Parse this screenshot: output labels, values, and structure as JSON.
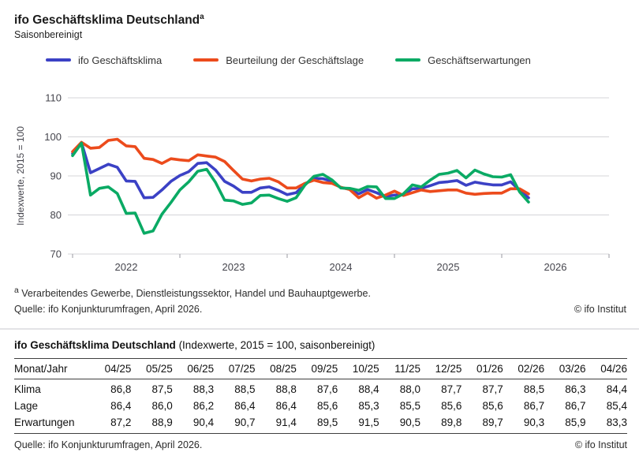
{
  "header": {
    "title": "ifo Geschäftsklima Deutschland",
    "title_superscript": "a",
    "subtitle": "Saisonbereinigt"
  },
  "legend": {
    "items": [
      {
        "label": "ifo Geschäftsklima",
        "color": "#3b41c5"
      },
      {
        "label": "Beurteilung der Geschäftslage",
        "color": "#ec4b1c"
      },
      {
        "label": "Geschäftserwartungen",
        "color": "#0aaa64"
      }
    ]
  },
  "chart_data": {
    "type": "line",
    "title": "ifo Geschäftsklima Deutschland, saisonbereinigt",
    "ylabel": "Indexwerte, 2015 = 100",
    "ylim": [
      70,
      110
    ],
    "y_ticks": [
      110,
      100,
      90,
      80,
      70
    ],
    "x_tick_years": [
      "2022",
      "2023",
      "2024",
      "2025",
      "2026"
    ],
    "start_month": "2022-01",
    "end_month": "2026-04",
    "grid": "horizontal",
    "legend_position": "top",
    "series": [
      {
        "name": "ifo Geschäftsklima",
        "color": "#3b41c5",
        "values": [
          95.7,
          98.5,
          90.8,
          91.9,
          93.0,
          92.2,
          88.7,
          88.6,
          84.4,
          84.5,
          86.4,
          88.6,
          90.1,
          91.1,
          93.2,
          93.4,
          91.5,
          88.6,
          87.4,
          85.8,
          85.8,
          86.9,
          87.2,
          86.3,
          85.2,
          85.7,
          87.9,
          89.4,
          89.3,
          88.6,
          87.0,
          86.6,
          85.4,
          86.5,
          85.7,
          84.7,
          85.1,
          85.2,
          86.7,
          86.8,
          87.5,
          88.3,
          88.5,
          88.8,
          87.6,
          88.4,
          88.0,
          87.7,
          87.7,
          88.5,
          86.3,
          84.4
        ]
      },
      {
        "name": "Beurteilung der Geschäftslage",
        "color": "#ec4b1c",
        "values": [
          96.2,
          98.6,
          97.1,
          97.3,
          99.1,
          99.4,
          97.7,
          97.5,
          94.5,
          94.2,
          93.2,
          94.4,
          94.1,
          93.9,
          95.4,
          95.1,
          94.8,
          93.7,
          91.4,
          89.2,
          88.7,
          89.2,
          89.4,
          88.5,
          86.9,
          86.9,
          88.1,
          88.9,
          88.3,
          88.1,
          87.1,
          86.5,
          84.4,
          85.7,
          84.3,
          85.1,
          86.1,
          85.0,
          85.7,
          86.4,
          86.0,
          86.2,
          86.4,
          86.4,
          85.6,
          85.3,
          85.5,
          85.6,
          85.6,
          86.7,
          86.7,
          85.4
        ]
      },
      {
        "name": "Geschäftserwartungen",
        "color": "#0aaa64",
        "values": [
          95.2,
          98.4,
          85.1,
          86.8,
          87.2,
          85.5,
          80.4,
          80.5,
          75.3,
          75.9,
          80.2,
          83.2,
          86.4,
          88.5,
          91.2,
          91.7,
          88.3,
          83.8,
          83.6,
          82.7,
          83.1,
          85.0,
          85.1,
          84.2,
          83.5,
          84.4,
          87.7,
          89.9,
          90.4,
          89.0,
          86.9,
          86.8,
          86.3,
          87.3,
          87.2,
          84.2,
          84.2,
          85.4,
          87.7,
          87.2,
          88.9,
          90.4,
          90.7,
          91.4,
          89.5,
          91.5,
          90.5,
          89.8,
          89.7,
          90.3,
          85.9,
          83.3
        ]
      }
    ]
  },
  "chart_footer": {
    "footnote_marker": "a",
    "footnote": " Verarbeitendes Gewerbe, Dienstleistungssektor, Handel und Bauhauptgewerbe.",
    "source": "Quelle: ifo Konjunkturumfragen, April 2026.",
    "copyright": "© ifo Institut"
  },
  "table": {
    "title_bold": "ifo Geschäftsklima Deutschland",
    "title_rest": " (Indexwerte, 2015 = 100, saisonbereinigt)",
    "row_header": "Monat/Jahr",
    "columns": [
      "04/25",
      "05/25",
      "06/25",
      "07/25",
      "08/25",
      "09/25",
      "10/25",
      "11/25",
      "12/25",
      "01/26",
      "02/26",
      "03/26",
      "04/26"
    ],
    "rows": [
      {
        "label": "Klima",
        "values": [
          "86,8",
          "87,5",
          "88,3",
          "88,5",
          "88,8",
          "87,6",
          "88,4",
          "88,0",
          "87,7",
          "87,7",
          "88,5",
          "86,3",
          "84,4"
        ]
      },
      {
        "label": "Lage",
        "values": [
          "86,4",
          "86,0",
          "86,2",
          "86,4",
          "86,4",
          "85,6",
          "85,3",
          "85,5",
          "85,6",
          "85,6",
          "86,7",
          "86,7",
          "85,4"
        ]
      },
      {
        "label": "Erwartungen",
        "values": [
          "87,2",
          "88,9",
          "90,4",
          "90,7",
          "91,4",
          "89,5",
          "91,5",
          "90,5",
          "89,8",
          "89,7",
          "90,3",
          "85,9",
          "83,3"
        ]
      }
    ],
    "source": "Quelle: ifo Konjunkturumfragen, April 2026.",
    "copyright": "© ifo Institut"
  }
}
